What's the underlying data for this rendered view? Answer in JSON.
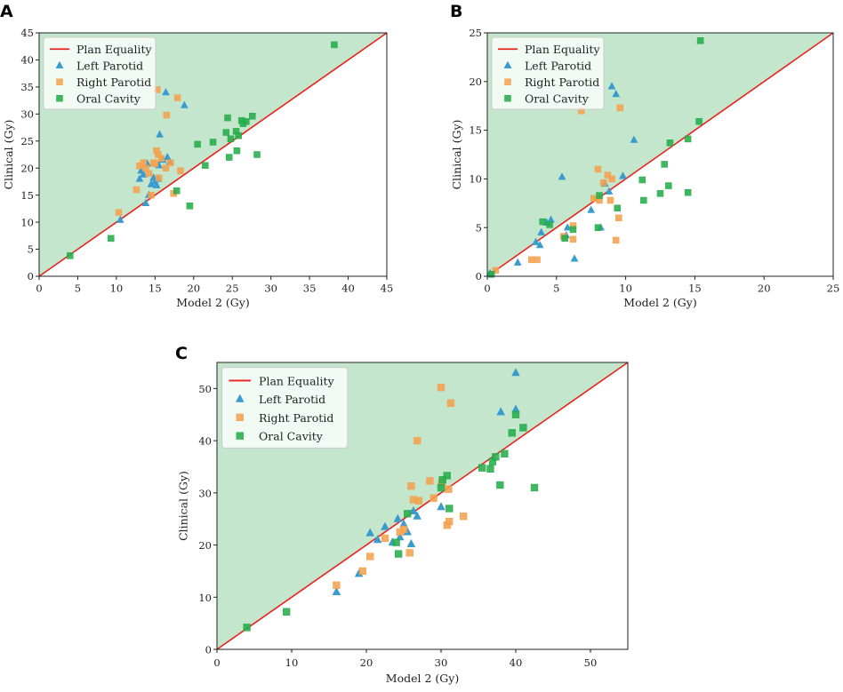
{
  "figure": {
    "colors": {
      "equality_line": "#e8231d",
      "region_fill": "#c3e6cc",
      "left_parotid": "#3a9bcf",
      "right_parotid": "#f4a250",
      "oral_cavity": "#25ad4a"
    }
  },
  "chart_data": [
    {
      "panel": "A",
      "type": "scatter",
      "xlabel": "Model 2 (Gy)",
      "ylabel": "Clinical (Gy)",
      "xlim": [
        0,
        45
      ],
      "ylim": [
        0,
        45
      ],
      "xticks": [
        0,
        5,
        10,
        15,
        20,
        25,
        30,
        35,
        40,
        45
      ],
      "yticks": [
        0,
        5,
        10,
        15,
        20,
        25,
        30,
        35,
        40,
        45
      ],
      "legend": {
        "position": "top-left",
        "entries": [
          "Plan Equality",
          "Left Parotid",
          "Right Parotid",
          "Oral Cavity"
        ]
      },
      "series": [
        {
          "name": "Plan Equality",
          "kind": "line",
          "points": [
            [
              0,
              0
            ],
            [
              45,
              45
            ]
          ]
        },
        {
          "name": "Left Parotid",
          "kind": "triangle",
          "points": [
            [
              10.5,
              10.4
            ],
            [
              13.0,
              18.0
            ],
            [
              13.2,
              19.5
            ],
            [
              13.5,
              18.8
            ],
            [
              13.8,
              13.5
            ],
            [
              14.0,
              20.8
            ],
            [
              14.2,
              15.0
            ],
            [
              14.5,
              17.0
            ],
            [
              14.8,
              18.2
            ],
            [
              15.0,
              17.5
            ],
            [
              15.2,
              16.8
            ],
            [
              15.4,
              18.0
            ],
            [
              15.5,
              20.5
            ],
            [
              15.6,
              26.2
            ],
            [
              16.0,
              21.5
            ],
            [
              16.4,
              34.0
            ],
            [
              16.6,
              22.0
            ],
            [
              16.9,
              21.2
            ],
            [
              18.8,
              31.6
            ]
          ]
        },
        {
          "name": "Right Parotid",
          "kind": "square",
          "points": [
            [
              10.3,
              11.8
            ],
            [
              12.6,
              16.0
            ],
            [
              13.0,
              20.4
            ],
            [
              13.5,
              21.0
            ],
            [
              13.8,
              20.0
            ],
            [
              14.2,
              19.0
            ],
            [
              14.5,
              15.0
            ],
            [
              14.8,
              21.0
            ],
            [
              15.0,
              20.8
            ],
            [
              15.2,
              23.2
            ],
            [
              15.4,
              22.5
            ],
            [
              15.3,
              34.5
            ],
            [
              15.5,
              18.2
            ],
            [
              15.8,
              21.8
            ],
            [
              16.4,
              20.0
            ],
            [
              16.5,
              29.8
            ],
            [
              17.0,
              21.0
            ],
            [
              17.4,
              15.3
            ],
            [
              17.9,
              33.0
            ],
            [
              18.3,
              19.5
            ]
          ]
        },
        {
          "name": "Oral Cavity",
          "kind": "square",
          "points": [
            [
              4.0,
              3.8
            ],
            [
              9.3,
              7.0
            ],
            [
              17.8,
              15.8
            ],
            [
              19.5,
              13.0
            ],
            [
              20.5,
              24.4
            ],
            [
              21.5,
              20.5
            ],
            [
              22.5,
              24.8
            ],
            [
              24.2,
              26.6
            ],
            [
              24.4,
              29.3
            ],
            [
              24.6,
              22.0
            ],
            [
              24.8,
              25.4
            ],
            [
              25.5,
              26.8
            ],
            [
              25.6,
              23.2
            ],
            [
              25.8,
              26.0
            ],
            [
              26.2,
              28.8
            ],
            [
              26.4,
              28.2
            ],
            [
              26.8,
              28.6
            ],
            [
              27.6,
              29.6
            ],
            [
              28.2,
              22.5
            ],
            [
              38.2,
              42.8
            ]
          ]
        }
      ]
    },
    {
      "panel": "B",
      "type": "scatter",
      "xlabel": "Model 2 (Gy)",
      "ylabel": "Clinical (Gy)",
      "xlim": [
        0,
        25
      ],
      "ylim": [
        0,
        25
      ],
      "xticks": [
        0,
        5,
        10,
        15,
        20,
        25
      ],
      "yticks": [
        0,
        5,
        10,
        15,
        20,
        25
      ],
      "legend": {
        "position": "top-left",
        "entries": [
          "Plan Equality",
          "Left Parotid",
          "Right Parotid",
          "Oral Cavity"
        ]
      },
      "series": [
        {
          "name": "Plan Equality",
          "kind": "line",
          "points": [
            [
              0,
              0
            ],
            [
              25,
              25
            ]
          ]
        },
        {
          "name": "Left Parotid",
          "kind": "triangle",
          "points": [
            [
              0.2,
              0.3
            ],
            [
              2.2,
              1.4
            ],
            [
              3.5,
              3.5
            ],
            [
              3.8,
              3.2
            ],
            [
              3.9,
              4.5
            ],
            [
              4.3,
              5.5
            ],
            [
              4.6,
              5.8
            ],
            [
              5.4,
              10.2
            ],
            [
              5.7,
              4.2
            ],
            [
              5.8,
              5.0
            ],
            [
              6.3,
              1.8
            ],
            [
              7.5,
              6.8
            ],
            [
              8.2,
              5.0
            ],
            [
              8.5,
              9.5
            ],
            [
              8.8,
              8.7
            ],
            [
              9.0,
              19.5
            ],
            [
              9.3,
              18.7
            ],
            [
              9.8,
              10.3
            ],
            [
              10.6,
              14.0
            ]
          ]
        },
        {
          "name": "Right Parotid",
          "kind": "square",
          "points": [
            [
              0.6,
              0.6
            ],
            [
              3.2,
              1.7
            ],
            [
              3.6,
              1.7
            ],
            [
              5.5,
              4.1
            ],
            [
              6.2,
              5.2
            ],
            [
              6.2,
              3.8
            ],
            [
              6.8,
              17.0
            ],
            [
              7.7,
              8.0
            ],
            [
              8.0,
              11.0
            ],
            [
              8.1,
              7.8
            ],
            [
              8.4,
              9.6
            ],
            [
              8.7,
              10.4
            ],
            [
              8.9,
              7.8
            ],
            [
              9.0,
              10.0
            ],
            [
              9.3,
              3.7
            ],
            [
              9.5,
              6.0
            ],
            [
              9.6,
              17.3
            ]
          ]
        },
        {
          "name": "Oral Cavity",
          "kind": "square",
          "points": [
            [
              0.3,
              0.2
            ],
            [
              4.0,
              5.6
            ],
            [
              4.5,
              5.3
            ],
            [
              5.6,
              3.9
            ],
            [
              6.2,
              4.8
            ],
            [
              8.0,
              5.0
            ],
            [
              8.1,
              8.3
            ],
            [
              9.4,
              7.0
            ],
            [
              11.2,
              9.9
            ],
            [
              11.3,
              7.8
            ],
            [
              12.5,
              8.5
            ],
            [
              12.8,
              11.5
            ],
            [
              13.1,
              9.3
            ],
            [
              13.2,
              13.7
            ],
            [
              14.5,
              8.6
            ],
            [
              14.5,
              14.1
            ],
            [
              15.3,
              15.9
            ],
            [
              15.4,
              24.2
            ]
          ]
        }
      ]
    },
    {
      "panel": "C",
      "type": "scatter",
      "xlabel": "Model 2 (Gy)",
      "ylabel": "Clinical (Gy)",
      "xlim": [
        0,
        55
      ],
      "ylim": [
        0,
        55
      ],
      "xticks": [
        0,
        10,
        20,
        30,
        40,
        50
      ],
      "yticks": [
        0,
        10,
        20,
        30,
        40,
        50
      ],
      "legend": {
        "position": "top-left",
        "entries": [
          "Plan Equality",
          "Left Parotid",
          "Right Parotid",
          "Oral Cavity"
        ]
      },
      "series": [
        {
          "name": "Plan Equality",
          "kind": "line",
          "points": [
            [
              0,
              0
            ],
            [
              55,
              55
            ]
          ]
        },
        {
          "name": "Left Parotid",
          "kind": "triangle",
          "points": [
            [
              16.0,
              11.0
            ],
            [
              19.0,
              14.5
            ],
            [
              20.5,
              22.3
            ],
            [
              21.5,
              21.0
            ],
            [
              22.5,
              23.5
            ],
            [
              23.5,
              20.5
            ],
            [
              24.2,
              25.0
            ],
            [
              24.5,
              21.5
            ],
            [
              25.0,
              24.0
            ],
            [
              25.5,
              22.5
            ],
            [
              26.0,
              20.2
            ],
            [
              26.3,
              26.5
            ],
            [
              26.8,
              25.5
            ],
            [
              30.0,
              27.3
            ],
            [
              38.0,
              45.5
            ],
            [
              40.0,
              46.0
            ],
            [
              40.0,
              53.0
            ]
          ]
        },
        {
          "name": "Right Parotid",
          "kind": "square",
          "points": [
            [
              16.0,
              12.3
            ],
            [
              19.5,
              15.0
            ],
            [
              20.5,
              17.8
            ],
            [
              22.5,
              21.3
            ],
            [
              24.5,
              22.5
            ],
            [
              25.0,
              23.0
            ],
            [
              25.8,
              18.5
            ],
            [
              26.0,
              31.3
            ],
            [
              26.3,
              28.7
            ],
            [
              26.8,
              40.0
            ],
            [
              27.0,
              28.5
            ],
            [
              28.5,
              32.3
            ],
            [
              29.0,
              29.0
            ],
            [
              30.0,
              50.2
            ],
            [
              30.1,
              32.0
            ],
            [
              30.8,
              23.8
            ],
            [
              31.0,
              30.7
            ],
            [
              31.1,
              24.5
            ],
            [
              31.3,
              47.2
            ],
            [
              33.0,
              25.5
            ]
          ]
        },
        {
          "name": "Oral Cavity",
          "kind": "square",
          "points": [
            [
              4.0,
              4.2
            ],
            [
              9.3,
              7.2
            ],
            [
              24.0,
              20.5
            ],
            [
              24.3,
              18.3
            ],
            [
              25.5,
              26.0
            ],
            [
              30.0,
              31.0
            ],
            [
              30.2,
              32.5
            ],
            [
              30.8,
              33.3
            ],
            [
              31.1,
              27.0
            ],
            [
              35.5,
              34.8
            ],
            [
              36.6,
              34.6
            ],
            [
              36.9,
              36.0
            ],
            [
              37.3,
              36.9
            ],
            [
              37.9,
              31.5
            ],
            [
              38.5,
              37.5
            ],
            [
              39.5,
              41.5
            ],
            [
              40.0,
              45.0
            ],
            [
              41.0,
              42.5
            ],
            [
              42.5,
              31.0
            ]
          ]
        }
      ]
    }
  ]
}
